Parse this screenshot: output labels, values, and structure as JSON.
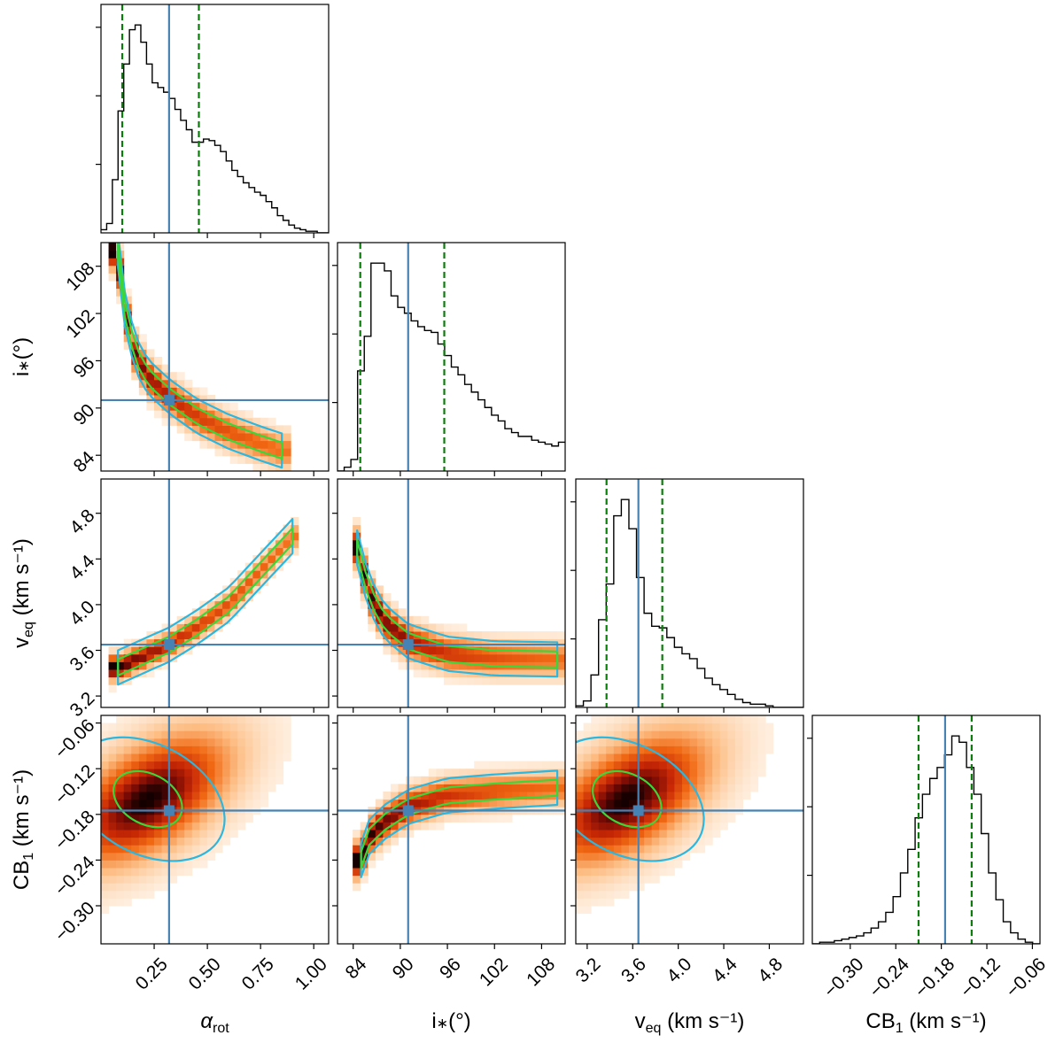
{
  "chart_data": {
    "type": "corner",
    "parameters": [
      {
        "key": "alpha",
        "label_main": "α",
        "label_sub": "rot",
        "unit": "",
        "range": [
          0.0,
          1.07
        ],
        "ticks": [
          0.25,
          0.5,
          0.75,
          1.0
        ],
        "tick_labels": [
          "0.25",
          "0.50",
          "0.75",
          "1.00"
        ],
        "truth": 0.32,
        "quantiles": [
          0.1,
          0.46
        ]
      },
      {
        "key": "incl",
        "label_main": "i",
        "label_sub": "∗",
        "unit": "(°)",
        "range": [
          82.0,
          111.0
        ],
        "ticks": [
          84,
          90,
          96,
          102,
          108
        ],
        "tick_labels": [
          "84",
          "90",
          "96",
          "102",
          "108"
        ],
        "truth": 91,
        "quantiles": [
          84.9,
          95.6
        ]
      },
      {
        "key": "veq",
        "label_main": "v",
        "label_sub": "eq",
        "unit": "(km s⁻¹)",
        "range": [
          3.1,
          5.1
        ],
        "ticks": [
          3.2,
          3.6,
          4.0,
          4.4,
          4.8
        ],
        "tick_labels": [
          "3.2",
          "3.6",
          "4.0",
          "4.4",
          "4.8"
        ],
        "truth": 3.65,
        "quantiles": [
          3.37,
          3.86
        ]
      },
      {
        "key": "cb1",
        "label_main": "CB",
        "label_sub": "1",
        "unit": "(km s⁻¹)",
        "range": [
          -0.35,
          -0.05
        ],
        "ticks": [
          -0.3,
          -0.24,
          -0.18,
          -0.12,
          -0.06
        ],
        "tick_labels": [
          "−0.30",
          "−0.24",
          "−0.18",
          "−0.12",
          "−0.06"
        ],
        "truth": -0.175,
        "quantiles": [
          -0.21,
          -0.14
        ]
      }
    ],
    "histograms": {
      "alpha": {
        "bins": [
          0.0,
          1.07
        ],
        "counts": [
          2,
          6,
          34,
          78,
          108,
          130,
          133,
          122,
          108,
          96,
          93,
          90,
          86,
          79,
          72,
          66,
          58,
          58,
          60,
          59,
          56,
          52,
          46,
          40,
          36,
          32,
          29,
          26,
          24,
          20,
          16,
          11,
          8,
          5,
          3,
          2,
          1,
          1,
          0,
          0
        ]
      },
      "incl": {
        "bins": [
          82.0,
          111.0
        ],
        "counts": [
          0,
          2,
          6,
          52,
          70,
          108,
          108,
          104,
          91,
          85,
          82,
          78,
          75,
          73,
          72,
          66,
          60,
          54,
          50,
          45,
          41,
          37,
          33,
          29,
          26,
          22,
          20,
          18,
          18,
          16,
          15,
          14,
          13,
          15
        ]
      },
      "veq": {
        "bins": [
          3.1,
          5.1
        ],
        "counts": [
          1,
          4,
          20,
          54,
          76,
          118,
          128,
          110,
          80,
          58,
          50,
          49,
          43,
          37,
          33,
          30,
          24,
          18,
          14,
          11,
          8,
          5,
          3,
          2,
          2,
          1,
          0,
          0,
          0,
          0
        ]
      },
      "cb1": {
        "bins": [
          -0.35,
          -0.05
        ],
        "counts": [
          0,
          1,
          1,
          2,
          3,
          4,
          5,
          7,
          10,
          14,
          20,
          30,
          45,
          60,
          80,
          95,
          105,
          112,
          120,
          132,
          128,
          112,
          95,
          70,
          45,
          28,
          14,
          7,
          3,
          1,
          0
        ]
      }
    },
    "correlations": [
      {
        "x": "alpha",
        "y": "incl",
        "shape": "curved",
        "ridge": [
          [
            0.08,
            110
          ],
          [
            0.1,
            104
          ],
          [
            0.16,
            97
          ],
          [
            0.22,
            94
          ],
          [
            0.32,
            91.5
          ],
          [
            0.45,
            89
          ],
          [
            0.6,
            87
          ],
          [
            0.75,
            85.5
          ],
          [
            0.85,
            84.6
          ]
        ]
      },
      {
        "x": "alpha",
        "y": "veq",
        "shape": "linear",
        "ridge": [
          [
            0.08,
            3.45
          ],
          [
            0.2,
            3.55
          ],
          [
            0.32,
            3.65
          ],
          [
            0.45,
            3.8
          ],
          [
            0.6,
            4.0
          ],
          [
            0.75,
            4.3
          ],
          [
            0.9,
            4.6
          ]
        ]
      },
      {
        "x": "incl",
        "y": "veq",
        "shape": "curved",
        "ridge": [
          [
            84.5,
            4.5
          ],
          [
            86,
            4.1
          ],
          [
            88,
            3.85
          ],
          [
            91,
            3.68
          ],
          [
            96,
            3.57
          ],
          [
            102,
            3.53
          ],
          [
            110,
            3.52
          ]
        ]
      },
      {
        "x": "alpha",
        "y": "cb1",
        "shape": "blob",
        "center": [
          0.22,
          -0.16
        ]
      },
      {
        "x": "incl",
        "y": "cb1",
        "shape": "curved",
        "ridge": [
          [
            85,
            -0.24
          ],
          [
            86,
            -0.21
          ],
          [
            88,
            -0.19
          ],
          [
            91,
            -0.17
          ],
          [
            96,
            -0.155
          ],
          [
            102,
            -0.15
          ],
          [
            110,
            -0.145
          ]
        ]
      },
      {
        "x": "veq",
        "y": "cb1",
        "shape": "blob",
        "center": [
          3.55,
          -0.16
        ]
      }
    ],
    "contour_levels": [
      "inner (green)",
      "outer (cyan)"
    ],
    "colors": {
      "truth": "#4682b4",
      "quantile": "#0a7d0a",
      "inner_contour": "#3ad63a",
      "outer_contour": "#2ab7e0",
      "histogram": "#000000"
    }
  }
}
